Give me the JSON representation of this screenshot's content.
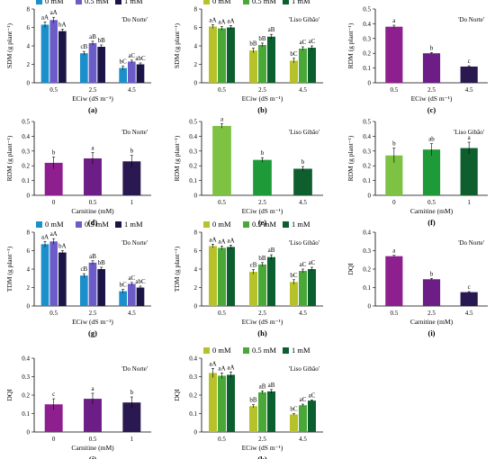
{
  "colors": {
    "dn": [
      "#1a8fc9",
      "#6c5cc8",
      "#1b1446"
    ],
    "lg": [
      "#b7c22a",
      "#4aa839",
      "#0b5e2d"
    ],
    "dn_single": [
      "#8e1f8e",
      "#8e1f8e",
      "#8e1f8e"
    ],
    "lg_single": [
      "#7dc243",
      "#1e9a38",
      "#0f5e2d"
    ],
    "dn_carn": [
      "#8e1f8e",
      "#6c1e86",
      "#2a1850"
    ],
    "lg_carn": [
      "#7dc243",
      "#1e9a38",
      "#0f5e2d"
    ]
  },
  "legend_labels": [
    "0 mM",
    "0.5 mM",
    "1 mM"
  ],
  "chart_data": [
    {
      "id": "a",
      "type": "bar",
      "caption": "(a)",
      "title": "'Do Norte'",
      "ylabel": "SDM (g plant⁻¹)",
      "xlabel": "ECiw (dS m⁻¹)",
      "yticks": [
        0,
        2,
        4,
        6,
        8
      ],
      "ylim": [
        0,
        8
      ],
      "categories": [
        "0.5",
        "2.5",
        "4.5"
      ],
      "legend": true,
      "palette": "dn",
      "series": [
        {
          "name": "0 mM",
          "values": [
            6.3,
            3.2,
            1.6
          ],
          "errors": [
            0.3,
            0.2,
            0.2
          ],
          "labels": [
            "aA",
            "cB",
            "bC"
          ]
        },
        {
          "name": "0.5 mM",
          "values": [
            6.8,
            4.3,
            2.3
          ],
          "errors": [
            0.3,
            0.2,
            0.15
          ],
          "labels": [
            "aA",
            "aB",
            "aC"
          ]
        },
        {
          "name": "1 mM",
          "values": [
            5.6,
            3.9,
            2.0
          ],
          "errors": [
            0.2,
            0.2,
            0.15
          ],
          "labels": [
            "bA",
            "bB",
            "abC"
          ]
        }
      ]
    },
    {
      "id": "b",
      "type": "bar",
      "caption": "(b)",
      "title": "'Liso Gibão'",
      "ylabel": "SDM (g plant⁻¹)",
      "xlabel": "ECiw (dS m⁻¹)",
      "yticks": [
        0,
        2,
        4,
        6,
        8
      ],
      "ylim": [
        0,
        8
      ],
      "categories": [
        "0.5",
        "2.5",
        "4.5"
      ],
      "legend": true,
      "palette": "lg",
      "series": [
        {
          "name": "0 mM",
          "values": [
            6.1,
            3.5,
            2.4
          ],
          "errors": [
            0.2,
            0.25,
            0.25
          ],
          "labels": [
            "aA",
            "bB",
            "bC"
          ]
        },
        {
          "name": "0.5 mM",
          "values": [
            5.9,
            4.1,
            3.7
          ],
          "errors": [
            0.2,
            0.2,
            0.2
          ],
          "labels": [
            "aA",
            "bB",
            "aC"
          ]
        },
        {
          "name": "1 mM",
          "values": [
            6.0,
            5.0,
            3.8
          ],
          "errors": [
            0.2,
            0.25,
            0.2
          ],
          "labels": [
            "aA",
            "aB",
            "aC"
          ]
        }
      ]
    },
    {
      "id": "c",
      "type": "bar",
      "caption": "(c)",
      "title": "'Do Norte'",
      "ylabel": "RDM (g plant⁻¹)",
      "xlabel": "ECiw (dS m⁻¹)",
      "yticks": [
        0,
        0.1,
        0.2,
        0.3,
        0.4,
        0.5
      ],
      "ylim": [
        0,
        0.5
      ],
      "categories": [
        "0.5",
        "2.5",
        "4.5"
      ],
      "legend": false,
      "palette": "dn_carn",
      "series": [
        {
          "values": [
            0.38,
            0.2,
            0.11
          ],
          "errors": [
            0.01,
            0.005,
            0.005
          ],
          "labels": [
            "a",
            "b",
            "c"
          ]
        }
      ]
    },
    {
      "id": "d",
      "type": "bar",
      "caption": "(d)",
      "title": "'Do Norte'",
      "ylabel": "RDM (g plant⁻¹)",
      "xlabel": "Carnitine (mM)",
      "yticks": [
        0,
        0.1,
        0.2,
        0.3,
        0.4,
        0.5
      ],
      "ylim": [
        0,
        0.5
      ],
      "categories": [
        "0",
        "0.5",
        "1"
      ],
      "legend": false,
      "palette": "dn_carn",
      "series": [
        {
          "values": [
            0.22,
            0.25,
            0.23
          ],
          "errors": [
            0.04,
            0.04,
            0.04
          ],
          "labels": [
            "b",
            "a",
            "b"
          ]
        }
      ]
    },
    {
      "id": "e",
      "type": "bar",
      "caption": "(e)",
      "title": "'Liso Gibão'",
      "ylabel": "RDM (g plant⁻¹)",
      "xlabel": "ECiw (dS m⁻¹)",
      "yticks": [
        0,
        0.1,
        0.2,
        0.3,
        0.4,
        0.5
      ],
      "ylim": [
        0,
        0.5
      ],
      "categories": [
        "0.5",
        "2.5",
        "4.5"
      ],
      "legend": false,
      "palette": "lg_carn",
      "series": [
        {
          "values": [
            0.47,
            0.24,
            0.18
          ],
          "errors": [
            0.015,
            0.015,
            0.015
          ],
          "labels": [
            "a",
            "b",
            "b"
          ]
        }
      ]
    },
    {
      "id": "f",
      "type": "bar",
      "caption": "(f)",
      "title": "'Liso Gibão'",
      "ylabel": "RDM (g plant⁻¹)",
      "xlabel": "Carnitine (mM)",
      "yticks": [
        0,
        0.1,
        0.2,
        0.3,
        0.4,
        0.5
      ],
      "ylim": [
        0,
        0.5
      ],
      "categories": [
        "0",
        "0.5",
        "1"
      ],
      "legend": false,
      "palette": "lg_carn",
      "series": [
        {
          "values": [
            0.27,
            0.31,
            0.32
          ],
          "errors": [
            0.05,
            0.04,
            0.04
          ],
          "labels": [
            "b",
            "ab",
            "a"
          ]
        }
      ]
    },
    {
      "id": "g",
      "type": "bar",
      "caption": "(g)",
      "title": "'Do Norte'",
      "ylabel": "TDM (g plant⁻¹)",
      "xlabel": "ECiw (dS m⁻¹)",
      "yticks": [
        0,
        2,
        4,
        6,
        8
      ],
      "ylim": [
        0,
        8
      ],
      "categories": [
        "0.5",
        "2.5",
        "4.5"
      ],
      "legend": true,
      "palette": "dn",
      "series": [
        {
          "name": "0 mM",
          "values": [
            6.7,
            3.3,
            1.6
          ],
          "errors": [
            0.3,
            0.2,
            0.2
          ],
          "labels": [
            "aA",
            "cB",
            "bC"
          ]
        },
        {
          "name": "0.5 mM",
          "values": [
            7.0,
            4.7,
            2.4
          ],
          "errors": [
            0.3,
            0.2,
            0.15
          ],
          "labels": [
            "aA",
            "aB",
            "aC"
          ]
        },
        {
          "name": "1 mM",
          "values": [
            5.8,
            4.0,
            2.0
          ],
          "errors": [
            0.2,
            0.2,
            0.15
          ],
          "labels": [
            "bA",
            "bB",
            "abC"
          ]
        }
      ]
    },
    {
      "id": "h",
      "type": "bar",
      "caption": "(h)",
      "title": "'Liso Gibão'",
      "ylabel": "TDM (g plant⁻¹)",
      "xlabel": "ECiw (dS m⁻¹)",
      "yticks": [
        0,
        2,
        4,
        6,
        8
      ],
      "ylim": [
        0,
        8
      ],
      "categories": [
        "0.5",
        "2.5",
        "4.5"
      ],
      "legend": true,
      "palette": "lg",
      "series": [
        {
          "name": "0 mM",
          "values": [
            6.5,
            3.7,
            2.6
          ],
          "errors": [
            0.2,
            0.25,
            0.25
          ],
          "labels": [
            "aA",
            "cB",
            "bC"
          ]
        },
        {
          "name": "0.5 mM",
          "values": [
            6.3,
            4.5,
            3.8
          ],
          "errors": [
            0.2,
            0.2,
            0.2
          ],
          "labels": [
            "aA",
            "bB",
            "aC"
          ]
        },
        {
          "name": "1 mM",
          "values": [
            6.4,
            5.3,
            4.0
          ],
          "errors": [
            0.2,
            0.25,
            0.2
          ],
          "labels": [
            "aA",
            "aB",
            "aC"
          ]
        }
      ]
    },
    {
      "id": "i",
      "type": "bar",
      "caption": "(i)",
      "title": "'Do Norte'",
      "ylabel": "DQI",
      "xlabel": "Carnitine (mM)",
      "yticks": [
        0,
        0.1,
        0.2,
        0.3,
        0.4
      ],
      "ylim": [
        0,
        0.4
      ],
      "categories": [
        "0.5",
        "2.5",
        "4.5"
      ],
      "legend": false,
      "palette": "dn_carn",
      "series": [
        {
          "values": [
            0.27,
            0.145,
            0.075
          ],
          "errors": [
            0.005,
            0.004,
            0.003
          ],
          "labels": [
            "a",
            "b",
            "c"
          ]
        }
      ]
    },
    {
      "id": "j",
      "type": "bar",
      "caption": "(j)",
      "title": "'Do Norte'",
      "ylabel": "DQI",
      "xlabel": "Carnitine (mM)",
      "yticks": [
        0,
        0.1,
        0.2,
        0.3,
        0.4
      ],
      "ylim": [
        0,
        0.4
      ],
      "categories": [
        "0",
        "0.5",
        "1"
      ],
      "legend": false,
      "palette": "dn_carn",
      "series": [
        {
          "values": [
            0.15,
            0.18,
            0.16
          ],
          "errors": [
            0.03,
            0.03,
            0.03
          ],
          "labels": [
            "c",
            "a",
            "b"
          ]
        }
      ]
    },
    {
      "id": "k",
      "type": "bar",
      "caption": "(k)",
      "title": "'Liso Gibão'",
      "ylabel": "DQI",
      "xlabel": "ECiw (dS m⁻¹)",
      "yticks": [
        0,
        0.1,
        0.2,
        0.3,
        0.4
      ],
      "ylim": [
        0,
        0.4
      ],
      "categories": [
        "0.5",
        "2.5",
        "4.5"
      ],
      "legend": true,
      "palette": "lg",
      "series": [
        {
          "name": "0 mM",
          "values": [
            0.32,
            0.14,
            0.095
          ],
          "errors": [
            0.025,
            0.008,
            0.004
          ],
          "labels": [
            "aA",
            "bB",
            "bC"
          ]
        },
        {
          "name": "0.5 mM",
          "values": [
            0.305,
            0.215,
            0.145
          ],
          "errors": [
            0.015,
            0.008,
            0.006
          ],
          "labels": [
            "aA",
            "aB",
            "aC"
          ]
        },
        {
          "name": "1 mM",
          "values": [
            0.31,
            0.22,
            0.17
          ],
          "errors": [
            0.015,
            0.01,
            0.004
          ],
          "labels": [
            "aA",
            "aB",
            "aC"
          ]
        }
      ]
    }
  ]
}
